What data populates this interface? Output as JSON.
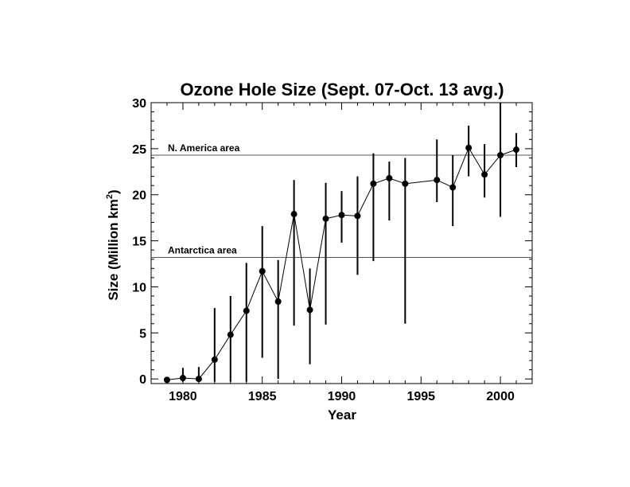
{
  "chart_data": {
    "type": "line",
    "title": "Ozone Hole Size (Sept. 07-Oct. 13 avg.)",
    "xlabel": "Year",
    "ylabel_main": "Size (Million km",
    "ylabel_sup": "2",
    "ylabel_close": ")",
    "xlim": [
      1978,
      2002
    ],
    "ylim": [
      -0.5,
      30
    ],
    "x_ticks": [
      1980,
      1985,
      1990,
      1995,
      2000
    ],
    "y_ticks": [
      0,
      5,
      10,
      15,
      20,
      25,
      30
    ],
    "reference_lines": [
      {
        "label": "N. America area",
        "value": 24.3
      },
      {
        "label": "Antarctica area",
        "value": 13.2
      }
    ],
    "series": [
      {
        "x": [
          1979,
          1980,
          1981,
          1982,
          1983,
          1984,
          1985,
          1986,
          1987,
          1988,
          1989,
          1990,
          1991,
          1992,
          1993,
          1994,
          1996,
          1997,
          1998,
          1999,
          2000,
          2001
        ],
        "y": [
          -0.1,
          0.1,
          0.0,
          2.1,
          4.8,
          7.4,
          11.7,
          8.4,
          17.9,
          7.5,
          17.4,
          17.8,
          17.7,
          21.2,
          21.8,
          21.2,
          21.6,
          20.8,
          25.1,
          22.2,
          24.3,
          24.9
        ],
        "low": [
          -0.3,
          -0.3,
          -0.3,
          -0.3,
          -0.3,
          -0.3,
          2.3,
          0.0,
          5.8,
          1.6,
          5.9,
          14.8,
          11.3,
          12.8,
          17.2,
          6.0,
          19.2,
          16.6,
          22.0,
          19.7,
          17.6,
          23.0
        ],
        "high": [
          0.0,
          1.2,
          1.3,
          7.7,
          9.0,
          12.6,
          16.6,
          12.9,
          21.6,
          12.0,
          21.3,
          20.4,
          22.0,
          24.5,
          23.6,
          24.0,
          26.0,
          24.3,
          27.5,
          25.5,
          30.0,
          26.7
        ]
      }
    ]
  }
}
